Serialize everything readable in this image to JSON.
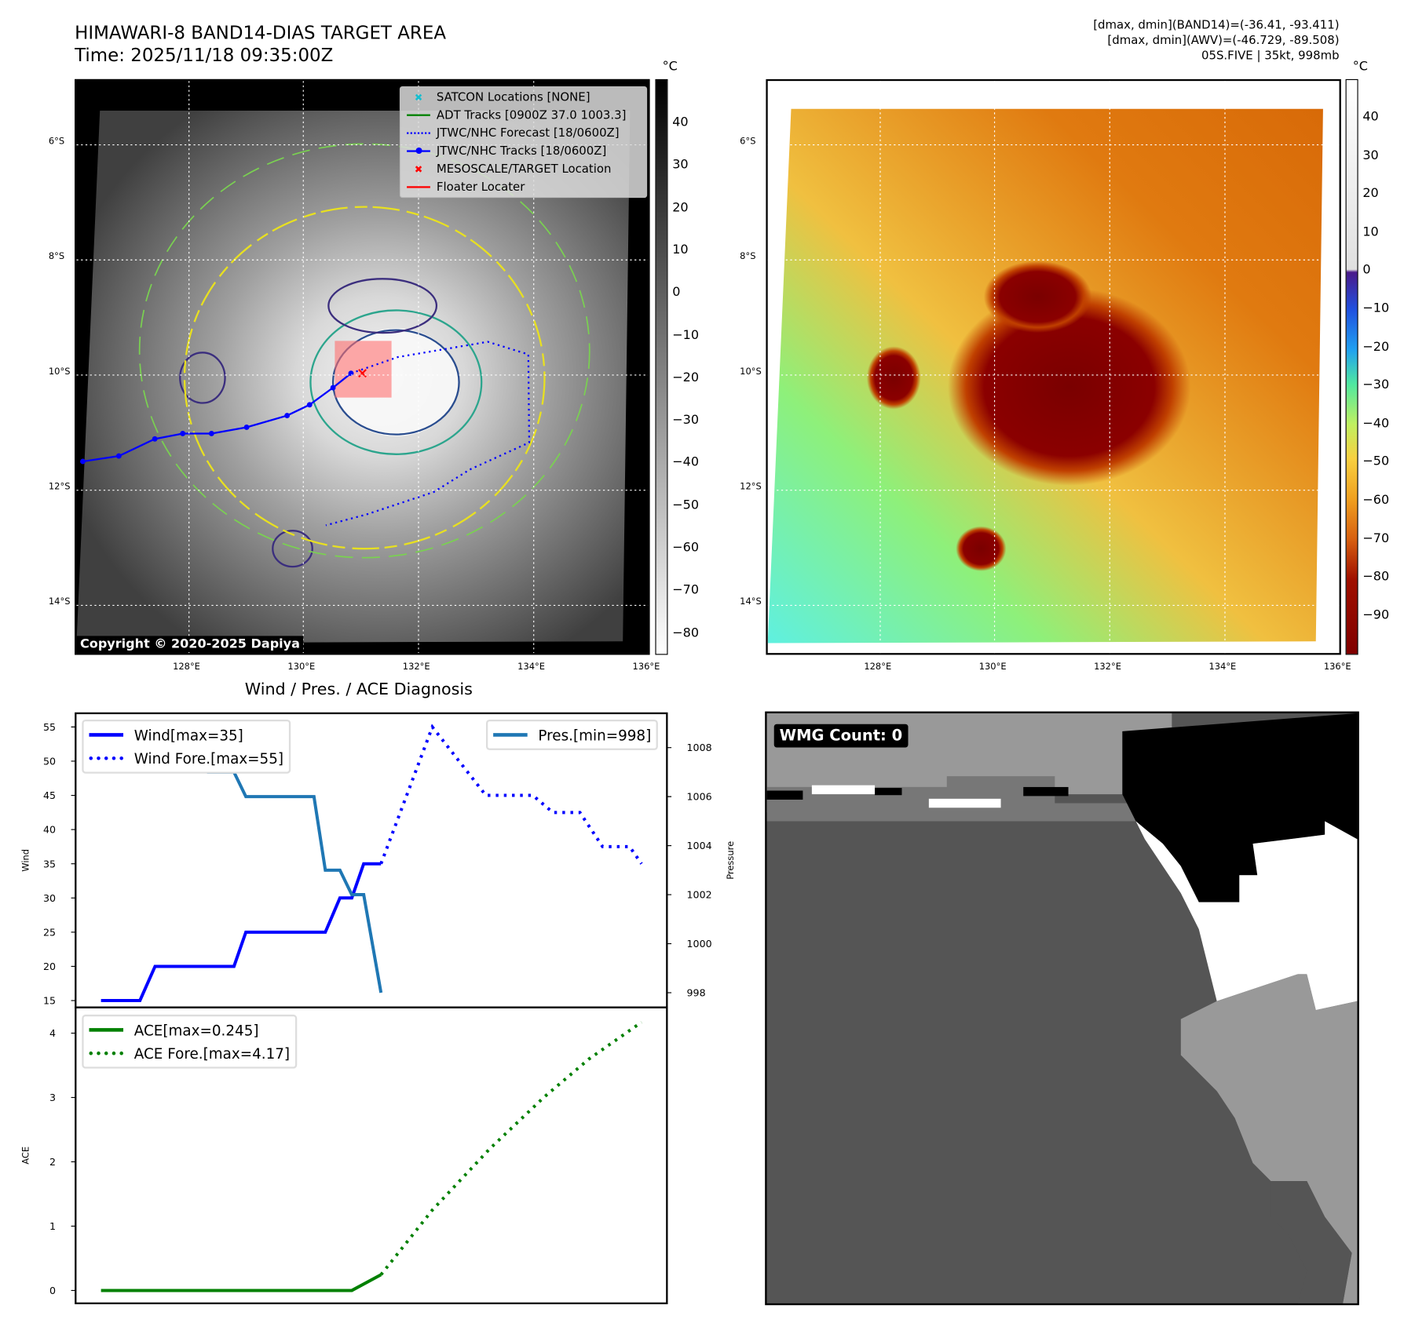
{
  "header": {
    "title": "HIMAWARI-8 BAND14-DIAS TARGET AREA",
    "time": "Time: 2025/11/18 09:35:00Z",
    "stats": [
      "[dmax, dmin](BAND14)=(-36.41, -93.411)",
      "[dmax, dmin](AWV)=(-46.729, -89.508)",
      "05S.FIVE | 35kt, 998mb"
    ]
  },
  "maps": {
    "lat_labels": [
      "6°S",
      "8°S",
      "10°S",
      "12°S",
      "14°S"
    ],
    "lon_labels": [
      "128°E",
      "130°E",
      "132°E",
      "134°E",
      "136°E"
    ],
    "unit": "°C",
    "copyright": "Copyright © 2020-2025 Dapiya",
    "legend": [
      {
        "label": "SATCON Locations [NONE]",
        "icon": "x-marker",
        "color": "#17becf"
      },
      {
        "label": "ADT Tracks [0900Z 37.0 1003.3]",
        "icon": "solid-line",
        "color": "#008000"
      },
      {
        "label": "JTWC/NHC Forecast [18/0600Z]",
        "icon": "dotted-line",
        "color": "#0000ff"
      },
      {
        "label": "JTWC/NHC Tracks [18/0600Z]",
        "icon": "line-dot",
        "color": "#0000ff"
      },
      {
        "label": "MESOSCALE/TARGET Location",
        "icon": "x-marker",
        "color": "#ff0000"
      },
      {
        "label": "Floater Locater",
        "icon": "solid-line",
        "color": "#ff0000"
      }
    ],
    "colorbar1": [
      "40",
      "30",
      "20",
      "10",
      "0",
      "−10",
      "−20",
      "−30",
      "−40",
      "−50",
      "−60",
      "−70",
      "−80"
    ],
    "colorbar2": [
      "40",
      "30",
      "20",
      "10",
      "0",
      "−10",
      "−20",
      "−30",
      "−40",
      "−50",
      "−60",
      "−70",
      "−80",
      "−90"
    ]
  },
  "chart_data": [
    {
      "type": "line",
      "title": "Wind / Pres. / ACE Diagnosis",
      "ylabel": "Wind",
      "y2label": "Pressure",
      "ylim": [
        14,
        57
      ],
      "y2lim": [
        997.4,
        1009.4
      ],
      "xlim": [
        -4.7,
        104.7
      ],
      "yticks": [
        15,
        20,
        25,
        30,
        35,
        40,
        45,
        50,
        55
      ],
      "y2ticks": [
        998,
        1000,
        1002,
        1004,
        1006,
        1008
      ],
      "series": [
        {
          "name": "Wind[max=35]",
          "axis": "left",
          "style": "solid",
          "color": "#0000ff",
          "x": [
            0,
            7.2,
            10,
            24.6,
            26.8,
            41.5,
            44.2,
            46.4,
            48.6,
            51.8
          ],
          "y": [
            15,
            15,
            20,
            20,
            25,
            25,
            30,
            30,
            35,
            35
          ]
        },
        {
          "name": "Wind Fore.[max=55]",
          "axis": "left",
          "style": "dotted",
          "color": "#0000ff",
          "x": [
            51.8,
            61.3,
            71.2,
            79.9,
            83.6,
            88.6,
            92.8,
            97.8,
            100
          ],
          "y": [
            35,
            55,
            45,
            45,
            42.5,
            42.5,
            37.5,
            37.5,
            35
          ]
        },
        {
          "name": "Pres.[min=998]",
          "axis": "right",
          "style": "solid",
          "color": "#1f77b4",
          "x": [
            0,
            14.7,
            19.8,
            24.6,
            26.8,
            39.4,
            41.5,
            44.2,
            46.4,
            48.6,
            51.8
          ],
          "y": [
            1009,
            1009,
            1007,
            1007,
            1006,
            1006,
            1003,
            1003,
            1002,
            1002,
            998
          ]
        }
      ]
    },
    {
      "type": "line",
      "ylabel": "ACE",
      "ylim": [
        -0.2,
        4.4
      ],
      "xlim": [
        -4.7,
        104.7
      ],
      "yticks": [
        0,
        1,
        2,
        3,
        4
      ],
      "series": [
        {
          "name": "ACE[max=0.245]",
          "style": "solid",
          "color": "#008000",
          "x": [
            0,
            46.4,
            51.8
          ],
          "y": [
            0,
            0,
            0.245
          ]
        },
        {
          "name": "ACE Fore.[max=4.17]",
          "style": "dotted",
          "color": "#008000",
          "x": [
            51.8,
            61.3,
            71.9,
            81.9,
            90.3,
            100
          ],
          "y": [
            0.245,
            1.25,
            2.2,
            3.0,
            3.6,
            4.17
          ]
        }
      ]
    }
  ],
  "wmg": {
    "label": "WMG Count: 0"
  }
}
